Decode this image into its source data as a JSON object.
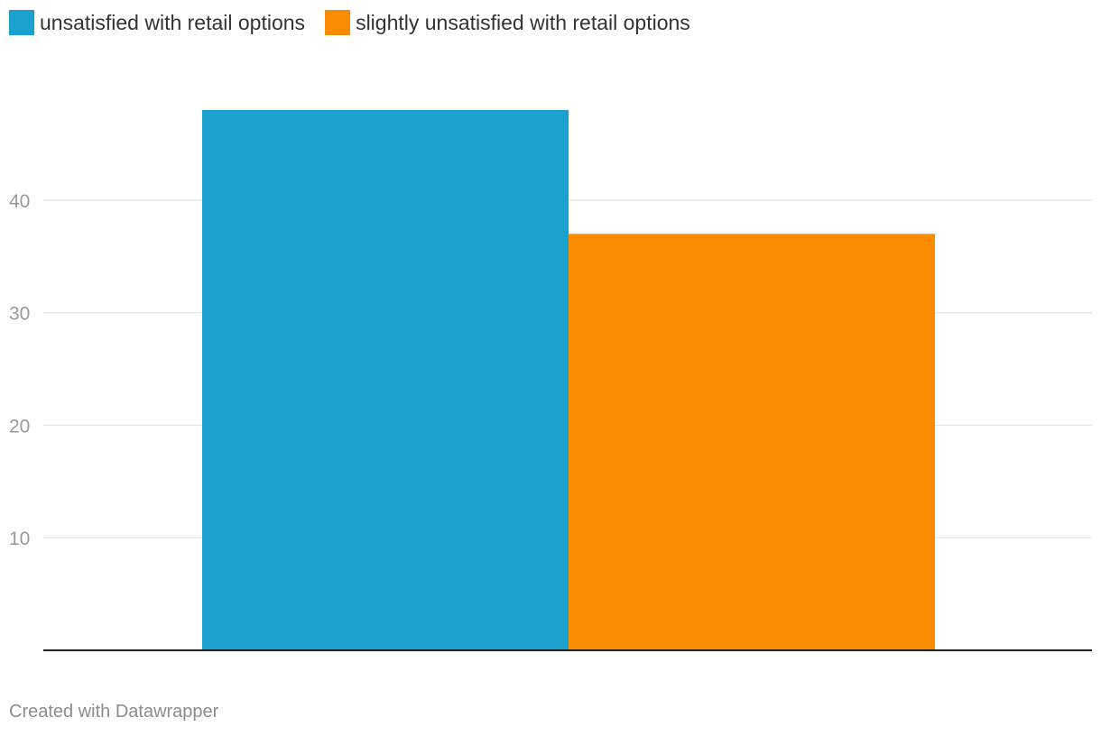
{
  "chart_data": {
    "type": "bar",
    "categories": [
      ""
    ],
    "series": [
      {
        "name": "unsatisfied with retail options",
        "values": [
          48
        ],
        "color": "#1aa1ce"
      },
      {
        "name": "slightly unsatisfied with retail options",
        "values": [
          37
        ],
        "color": "#fa8c00"
      }
    ],
    "yticks": [
      10,
      20,
      30,
      40
    ],
    "ylim": [
      0,
      48
    ],
    "grid": true,
    "legend_position": "top-left",
    "title": "",
    "xlabel": "",
    "ylabel": ""
  },
  "legend": {
    "items": [
      {
        "label": "unsatisfied with retail options",
        "color": "#1aa1ce"
      },
      {
        "label": "slightly unsatisfied with retail options",
        "color": "#fa8c00"
      }
    ]
  },
  "footer": {
    "credit": "Created with Datawrapper"
  }
}
